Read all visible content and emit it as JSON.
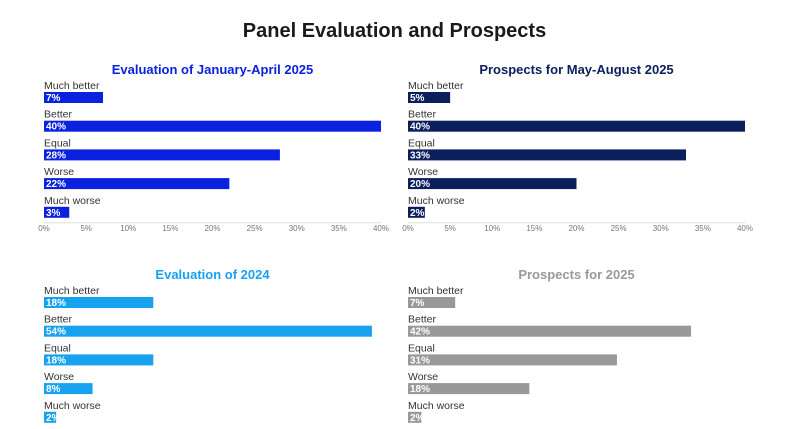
{
  "title": "Panel Evaluation and Prospects",
  "chart_data": [
    {
      "type": "bar",
      "orientation": "horizontal",
      "title": "Evaluation of January-April 2025",
      "color": "#0a22e0",
      "categories": [
        "Much better",
        "Better",
        "Equal",
        "Worse",
        "Much worse"
      ],
      "values": [
        7,
        40,
        28,
        22,
        3
      ],
      "labels": [
        "7%",
        "40%",
        "28%",
        "22%",
        "3%"
      ],
      "xlim": [
        0,
        40
      ],
      "ticks": [
        "0%",
        "5%",
        "10%",
        "15%",
        "20%",
        "25%",
        "30%",
        "35%",
        "40%"
      ]
    },
    {
      "type": "bar",
      "orientation": "horizontal",
      "title": "Prospects for May-August 2025",
      "color": "#0a1f5c",
      "categories": [
        "Much better",
        "Better",
        "Equal",
        "Worse",
        "Much worse"
      ],
      "values": [
        5,
        40,
        33,
        20,
        2
      ],
      "labels": [
        "5%",
        "40%",
        "33%",
        "20%",
        "2%"
      ],
      "xlim": [
        0,
        40
      ],
      "ticks": [
        "0%",
        "5%",
        "10%",
        "15%",
        "20%",
        "25%",
        "30%",
        "35%",
        "40%"
      ]
    },
    {
      "type": "bar",
      "orientation": "horizontal",
      "title": "Evaluation of 2024",
      "color": "#17a2f0",
      "categories": [
        "Much better",
        "Better",
        "Equal",
        "Worse",
        "Much worse"
      ],
      "values": [
        18,
        54,
        18,
        8,
        2
      ],
      "labels": [
        "18%",
        "54%",
        "18%",
        "8%",
        "2%"
      ],
      "xlim": [
        0,
        55.5
      ],
      "ticks": []
    },
    {
      "type": "bar",
      "orientation": "horizontal",
      "title": "Prospects for 2025",
      "color": "#999999",
      "categories": [
        "Much better",
        "Better",
        "Equal",
        "Worse",
        "Much worse"
      ],
      "values": [
        7,
        42,
        31,
        18,
        2
      ],
      "labels": [
        "7%",
        "42%",
        "31%",
        "18%",
        "2%"
      ],
      "xlim": [
        0,
        50
      ],
      "ticks": []
    }
  ]
}
